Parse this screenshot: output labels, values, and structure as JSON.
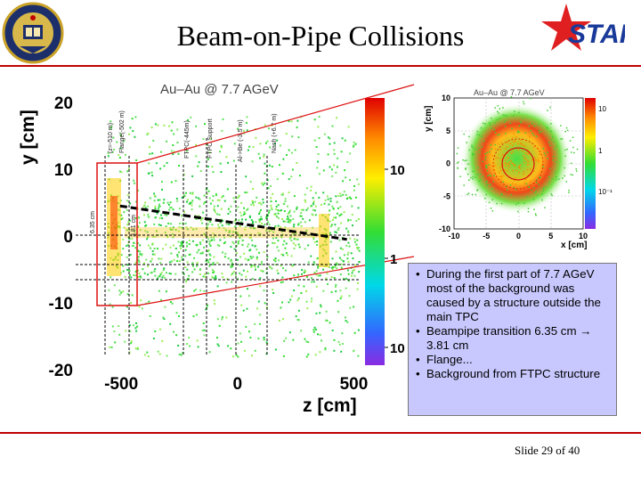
{
  "slide": {
    "title": "Beam-on-Pipe Collisions",
    "slide_number": "Slide 29 of 40",
    "logo_right_text": "STAR"
  },
  "bullets": [
    "During the first part of 7.7 AGeV most of the background was caused by a structure outside the main TPC",
    "Beampipe transition 6.35 cm → 3.81 cm",
    "Flange...",
    "Background from FTPC structure"
  ],
  "colors": {
    "accent_red": "#c00000",
    "textbox_bg": "#c8c8ff",
    "star_red": "#e02020",
    "star_blue": "#1a3a9a"
  },
  "icons": [
    "uc-davis-seal-icon",
    "star-logo-icon"
  ],
  "chart_data": [
    {
      "type": "heatmap",
      "title": "Au–Au @ 7.7 AGeV",
      "xlabel": "z [cm]",
      "ylabel": "y [cm]",
      "xlim": [
        -600,
        600
      ],
      "ylim": [
        -20,
        20
      ],
      "x_ticks": [
        -500,
        0,
        500
      ],
      "y_ticks": [
        20,
        10,
        0,
        -10,
        -20
      ],
      "color_scale_labels": [
        "10",
        "1",
        "10"
      ],
      "annotations": [
        "(z=-510 m)",
        "Flange(-502 m)",
        "FTPC(-445m)",
        "FTPC Support",
        "Al->Be (-3.5 m)",
        "Nash (+6.7 m)",
        "6.35 cm",
        "3.81 cm"
      ],
      "sketch_line": [
        [
          -505,
          4.5
        ],
        [
          470,
          -0.5
        ]
      ]
    },
    {
      "type": "heatmap",
      "title": "Au–Au @ 7.7 AGeV",
      "xlabel": "x [cm]",
      "ylabel": "y [cm]",
      "xlim": [
        -10,
        10
      ],
      "ylim": [
        -10,
        10
      ],
      "x_ticks": [
        -10,
        -5,
        0,
        5,
        10
      ],
      "y_ticks": [
        10,
        5,
        0,
        -5,
        -10
      ],
      "color_scale_labels": [
        "10",
        "1",
        "10⁻¹"
      ]
    }
  ]
}
